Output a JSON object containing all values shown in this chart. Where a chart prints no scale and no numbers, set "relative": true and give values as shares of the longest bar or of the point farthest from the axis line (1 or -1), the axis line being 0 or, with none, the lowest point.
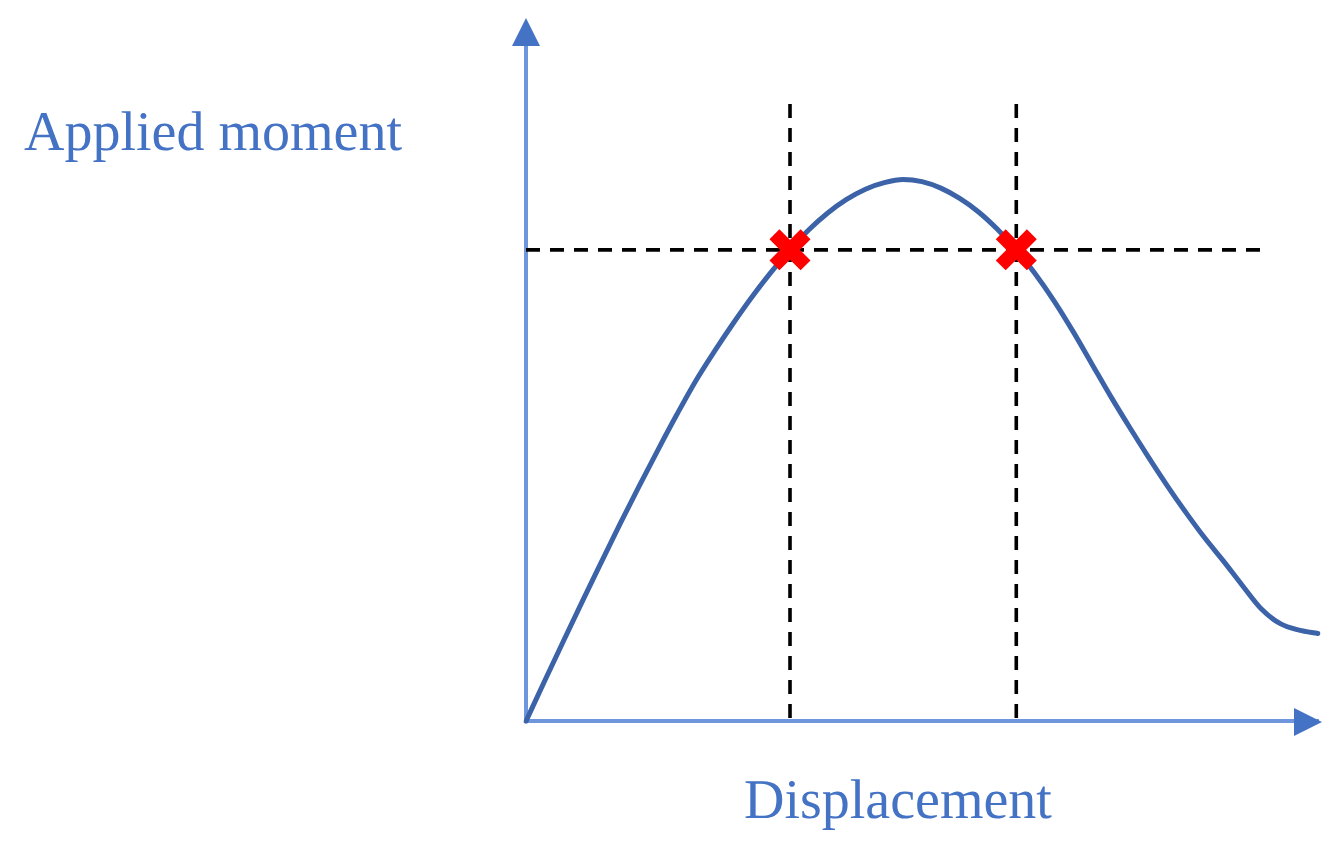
{
  "chart_data": {
    "type": "line",
    "relative": true,
    "xlabel": "Displacement",
    "ylabel": "Applied moment",
    "categories": [
      null,
      null,
      null,
      null,
      null,
      null,
      null,
      null,
      null,
      null,
      null,
      null,
      null,
      null,
      null,
      null,
      null,
      null,
      null,
      null,
      null,
      null,
      null,
      null,
      null,
      null,
      null,
      null,
      null,
      null,
      null,
      null,
      null,
      null,
      null,
      null,
      null,
      null,
      null,
      null,
      null,
      null,
      null
    ],
    "series": [
      {
        "color": "#3c63a8",
        "marker": "none",
        "values": [
          0,
          0.075,
          0.149,
          0.222,
          0.294,
          0.365,
          0.434,
          0.501,
          0.566,
          0.628,
          0.683,
          0.735,
          0.784,
          0.829,
          0.87,
          0.907,
          0.938,
          0.963,
          0.982,
          0.994,
          1,
          0.996,
          0.984,
          0.965,
          0.94,
          0.908,
          0.87,
          0.826,
          0.776,
          0.72,
          0.66,
          0.6,
          0.543,
          0.488,
          0.435,
          0.385,
          0.338,
          0.295,
          0.25,
          0.207,
          0.18,
          0.168,
          0.162
        ]
      },
      {
        "color": "#ff0000",
        "marker": "cross",
        "values": [
          null,
          null,
          null,
          null,
          null,
          null,
          null,
          null,
          null,
          null,
          null,
          null,
          null,
          null,
          0.87,
          null,
          null,
          null,
          null,
          null,
          null,
          null,
          null,
          null,
          null,
          null,
          0.87,
          null,
          null,
          null,
          null,
          null,
          null,
          null,
          null,
          null,
          null,
          null,
          null,
          null,
          null,
          null,
          null
        ]
      }
    ],
    "ref_lines": [
      {
        "axis": "y",
        "value": 0.87,
        "color": "#000000",
        "line_style": "dashed"
      }
    ]
  }
}
